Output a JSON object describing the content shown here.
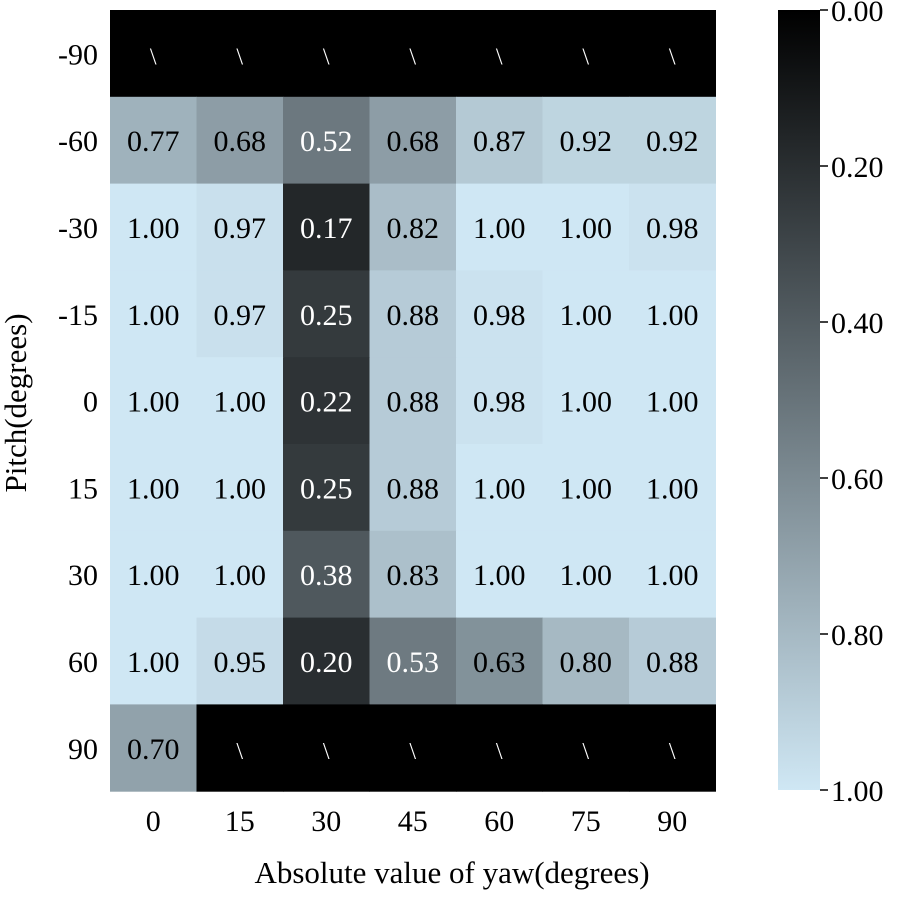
{
  "chart_data": {
    "type": "heatmap",
    "xlabel": "Absolute value of yaw(degrees)",
    "ylabel": "Pitch(degrees)",
    "x_categories": [
      "0",
      "15",
      "30",
      "45",
      "60",
      "75",
      "90"
    ],
    "y_categories": [
      "-90",
      "-60",
      "-30",
      "-15",
      "0",
      "15",
      "30",
      "60",
      "90"
    ],
    "values": [
      [
        null,
        null,
        null,
        null,
        null,
        null,
        null
      ],
      [
        0.77,
        0.68,
        0.52,
        0.68,
        0.87,
        0.92,
        0.92
      ],
      [
        1.0,
        0.97,
        0.17,
        0.82,
        1.0,
        1.0,
        0.98
      ],
      [
        1.0,
        0.97,
        0.25,
        0.88,
        0.98,
        1.0,
        1.0
      ],
      [
        1.0,
        1.0,
        0.22,
        0.88,
        0.98,
        1.0,
        1.0
      ],
      [
        1.0,
        1.0,
        0.25,
        0.88,
        1.0,
        1.0,
        1.0
      ],
      [
        1.0,
        1.0,
        0.38,
        0.83,
        1.0,
        1.0,
        1.0
      ],
      [
        1.0,
        0.95,
        0.2,
        0.53,
        0.63,
        0.8,
        0.88
      ],
      [
        0.7,
        null,
        null,
        null,
        null,
        null,
        null
      ]
    ],
    "missing_label": "\\",
    "colorbar": {
      "range": [
        0.0,
        1.0
      ],
      "ticks": [
        "0.00",
        "0.20",
        "0.40",
        "0.60",
        "0.80",
        "1.00"
      ],
      "colors": [
        "#000000",
        "#cfe7f4"
      ]
    }
  }
}
